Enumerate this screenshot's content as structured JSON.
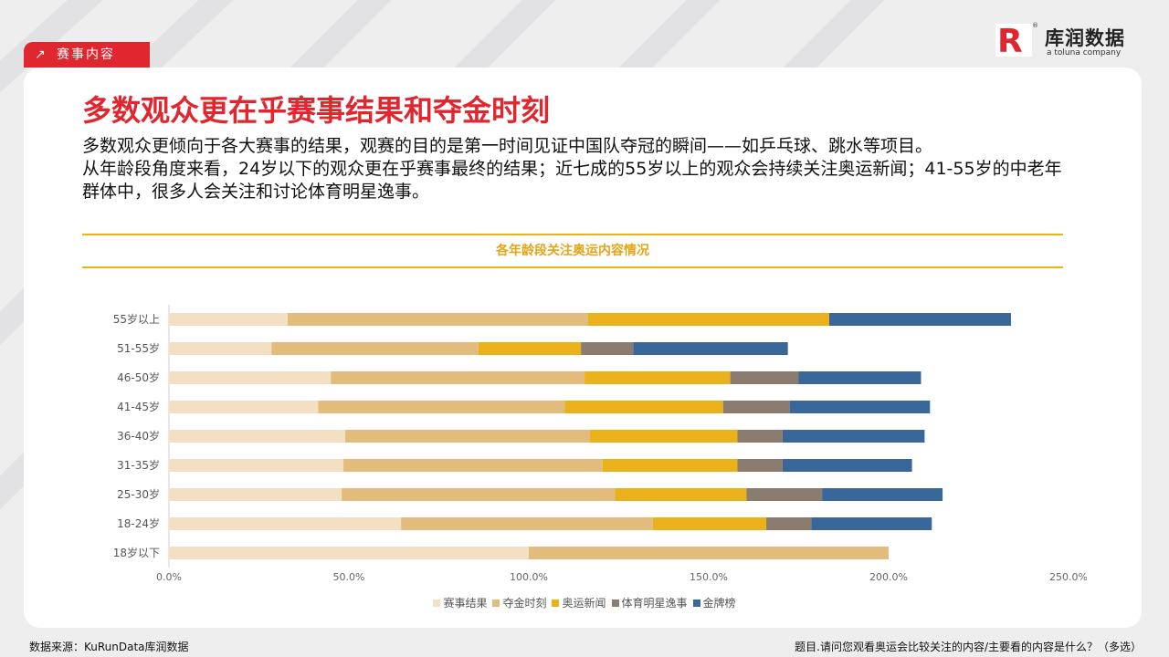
{
  "header": {
    "section_tag": "赛事内容",
    "logo_text": "库润数据",
    "logo_sub": "a toluna company",
    "logo_mark": "R",
    "logo_reg": "®"
  },
  "title": "多数观众更在乎赛事结果和夺金时刻",
  "description": [
    "多数观众更倾向于各大赛事的结果，观赛的目的是第一时间见证中国队夺冠的瞬间——如乒乓球、跳水等项目。",
    "从年龄段角度来看，24岁以下的观众更在乎赛事最终的结果；近七成的55岁以上的观众会持续关注奥运新闻；41-55岁的中老年群体中，很多人会关注和讨论体育明星逸事。"
  ],
  "chart_title": "各年龄段关注奥运内容情况",
  "colors": {
    "accent": "#e0262f",
    "banner": "#e8b517",
    "series": [
      "#f3dfc2",
      "#e2bc7d",
      "#e9b11a",
      "#8a7c6e",
      "#3a679a"
    ]
  },
  "chart_data": {
    "type": "bar",
    "orientation": "horizontal",
    "stacked": true,
    "title": "各年龄段关注奥运内容情况",
    "categories": [
      "55岁以上",
      "51-55岁",
      "46-50岁",
      "41-45岁",
      "36-40岁",
      "31-35岁",
      "25-30岁",
      "18-24岁",
      "18岁以下"
    ],
    "series": [
      {
        "name": "赛事结果",
        "values": [
          33.0,
          28.5,
          45.0,
          41.5,
          49.0,
          48.5,
          48.0,
          64.5,
          100.0
        ]
      },
      {
        "name": "夺金时刻",
        "values": [
          83.5,
          57.5,
          70.5,
          68.5,
          68.0,
          72.0,
          76.0,
          70.0,
          100.0
        ]
      },
      {
        "name": "奥运新闻",
        "values": [
          67.0,
          28.5,
          40.5,
          44.0,
          41.0,
          37.5,
          36.5,
          31.5,
          0
        ]
      },
      {
        "name": "体育明星逸事",
        "values": [
          0,
          14.5,
          19.0,
          18.5,
          12.5,
          12.5,
          21.0,
          12.5,
          0
        ]
      },
      {
        "name": "金牌榜",
        "values": [
          50.5,
          43.0,
          34.0,
          39.0,
          39.5,
          36.0,
          33.5,
          33.5,
          0
        ]
      }
    ],
    "x_ticks": [
      "0.0%",
      "50.0%",
      "100.0%",
      "150.0%",
      "200.0%",
      "250.0%"
    ],
    "xlim": [
      0,
      250
    ],
    "legend_position": "bottom",
    "grid": false
  },
  "footer": {
    "source": "数据来源：KuRunData库润数据",
    "question": "题目.请问您观看奥运会比较关注的内容/主要看的内容是什么？（多选）"
  }
}
